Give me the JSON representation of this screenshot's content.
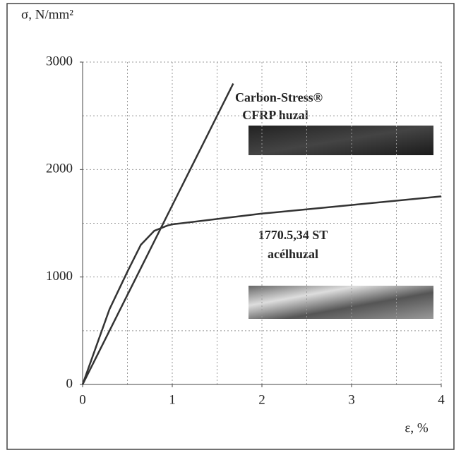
{
  "chart_data": {
    "type": "line",
    "y_label": "σ, N/mm²",
    "x_label": "ε, %",
    "annotations": [
      "Carbon-Stress®",
      "CFRP huzal",
      "1770.5,34 ST",
      "acélhuzal"
    ],
    "series": [
      {
        "color": "#333333",
        "x": [
          0,
          1.68
        ],
        "values": [
          0,
          2800
        ]
      },
      {
        "color": "#333333",
        "x": [
          0,
          0.3,
          0.5,
          0.65,
          0.8,
          0.95,
          1,
          2,
          3,
          4
        ],
        "values": [
          0,
          700,
          1050,
          1300,
          1430,
          1480,
          1490,
          1590,
          1670,
          1750
        ]
      }
    ],
    "xlim": [
      0,
      4
    ],
    "xticks": [
      0,
      1,
      2,
      3,
      4
    ],
    "ylim": [
      0,
      3000
    ],
    "yticks": [
      0,
      1000,
      2000,
      3000
    ],
    "grid": true
  }
}
